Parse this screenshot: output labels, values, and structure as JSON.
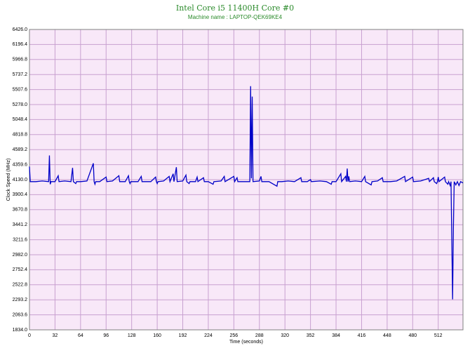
{
  "chart_data": {
    "type": "line",
    "title": "Intel Core i5 11400H Core #0",
    "subtitle": "Machine name : LAPTOP-QEK69KE4",
    "x_label": "Time (seconds)",
    "y_label": "Clock Speed (MHz)",
    "xlim": [
      0,
      543
    ],
    "ylim": [
      1834,
      6426
    ],
    "xticks": [
      0,
      32,
      64,
      96,
      128,
      160,
      192,
      224,
      256,
      288,
      320,
      352,
      384,
      416,
      448,
      480,
      512
    ],
    "yticks": [
      {
        "value": 1834,
        "label": "1834.0"
      },
      2063.6,
      2293.2,
      2522.8,
      2752.4,
      {
        "value": 2982,
        "label": "2982.0"
      },
      3211.6,
      3441.2,
      3670.8,
      3900.4,
      {
        "value": 4130,
        "label": "4130.0"
      },
      4359.6,
      4589.2,
      4818.8,
      5048.4,
      {
        "value": 5278,
        "label": "5278.0"
      },
      5507.6,
      5737.2,
      5966.8,
      6196.4,
      {
        "value": 6426,
        "label": "6426.0"
      }
    ],
    "grid": true,
    "series": [
      {
        "color": "#0000c8",
        "x": [
          0,
          1,
          8,
          16,
          24,
          25,
          26,
          27,
          32,
          36,
          37,
          44,
          52,
          54,
          55,
          58,
          59,
          64,
          72,
          80,
          81,
          82,
          83,
          88,
          96,
          97,
          104,
          112,
          113,
          120,
          124,
          125,
          126,
          127,
          136,
          140,
          141,
          152,
          158,
          159,
          160,
          161,
          168,
          175,
          176,
          180,
          181,
          184,
          185,
          192,
          196,
          197,
          200,
          201,
          208,
          210,
          211,
          218,
          219,
          224,
          230,
          231,
          240,
          244,
          245,
          256,
          257,
          260,
          261,
          268,
          276,
          277,
          278,
          279,
          280,
          288,
          290,
          291,
          300,
          310,
          311,
          316,
          324,
          332,
          340,
          341,
          348,
          352,
          353,
          364,
          372,
          378,
          379,
          384,
          390,
          391,
          396,
          397,
          398,
          399,
          400,
          401,
          408,
          416,
          420,
          421,
          428,
          429,
          436,
          442,
          443,
          452,
          460,
          470,
          471,
          480,
          481,
          490,
          500,
          501,
          506,
          507,
          510,
          511,
          512,
          513,
          520,
          521,
          524,
          525,
          527,
          528,
          530,
          531,
          532,
          534,
          536,
          538,
          540,
          543
        ],
        "values": [
          4330,
          4100,
          4100,
          4110,
          4100,
          4500,
          4060,
          4100,
          4100,
          4190,
          4100,
          4110,
          4100,
          4310,
          4100,
          4070,
          4100,
          4100,
          4110,
          4380,
          4100,
          4060,
          4100,
          4100,
          4170,
          4100,
          4110,
          4190,
          4100,
          4100,
          4190,
          4100,
          4070,
          4100,
          4100,
          4180,
          4100,
          4100,
          4170,
          4100,
          4070,
          4100,
          4110,
          4180,
          4100,
          4220,
          4100,
          4320,
          4100,
          4110,
          4200,
          4100,
          4070,
          4100,
          4100,
          4170,
          4100,
          4160,
          4100,
          4100,
          4060,
          4100,
          4110,
          4180,
          4100,
          4180,
          4100,
          4160,
          4100,
          4100,
          4100,
          5560,
          4150,
          5400,
          4100,
          4110,
          4180,
          4100,
          4100,
          4030,
          4100,
          4100,
          4110,
          4100,
          4160,
          4100,
          4100,
          4130,
          4100,
          4110,
          4100,
          4060,
          4100,
          4100,
          4220,
          4100,
          4180,
          4100,
          4300,
          4100,
          4180,
          4100,
          4110,
          4100,
          4180,
          4100,
          4050,
          4100,
          4110,
          4160,
          4100,
          4100,
          4110,
          4180,
          4100,
          4170,
          4100,
          4110,
          4150,
          4100,
          4160,
          4100,
          4070,
          4100,
          4170,
          4100,
          4170,
          4100,
          4060,
          4100,
          4040,
          4100,
          2300,
          3400,
          4100,
          4050,
          4100,
          4040,
          4100,
          4080
        ]
      }
    ]
  }
}
